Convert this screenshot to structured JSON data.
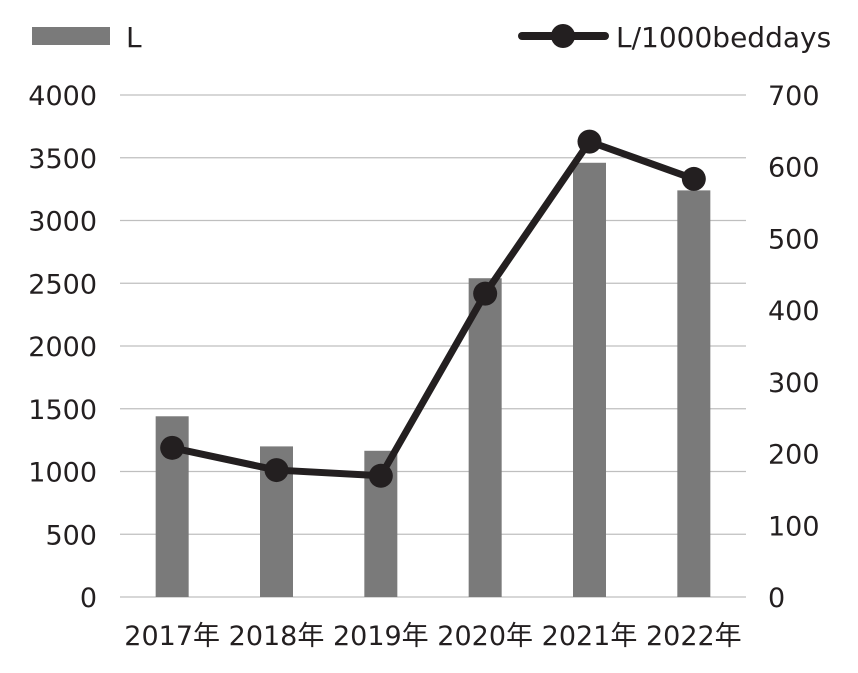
{
  "chart_data": {
    "type": "bar",
    "categories": [
      "2017年",
      "2018年",
      "2019年",
      "2020年",
      "2021年",
      "2022年"
    ],
    "series": [
      {
        "name": "L",
        "type": "bar",
        "axis": "left",
        "color": "#7a7a7a",
        "values": [
          1440,
          1200,
          1165,
          2540,
          3460,
          3240
        ]
      },
      {
        "name": "L/1000beddays",
        "type": "line",
        "axis": "right",
        "color": "#231f20",
        "values": [
          208,
          177,
          169,
          423,
          635,
          583
        ]
      }
    ],
    "y_left": {
      "ylim": [
        0,
        4000
      ],
      "ticks": [
        "0",
        "500",
        "1000",
        "1500",
        "2000",
        "2500",
        "3000",
        "3500",
        "4000"
      ]
    },
    "y_right": {
      "ylim": [
        0,
        700
      ],
      "ticks": [
        "0",
        "100",
        "200",
        "300",
        "400",
        "500",
        "600",
        "700"
      ]
    },
    "grid": true,
    "legend": "top"
  }
}
